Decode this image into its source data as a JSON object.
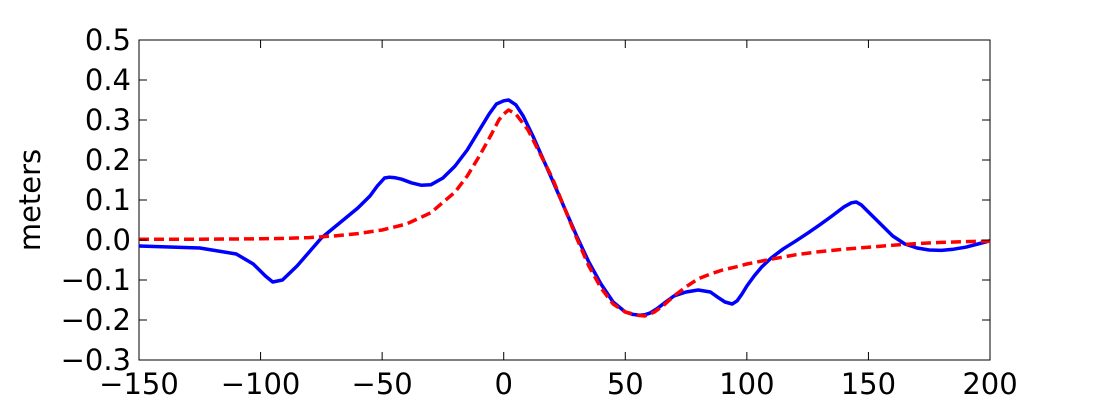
{
  "chart_data": {
    "type": "line",
    "title": "",
    "xlabel": "",
    "ylabel": "meters",
    "xlim": [
      -150,
      200
    ],
    "ylim": [
      -0.3,
      0.5
    ],
    "xticks": [
      -150,
      -100,
      -50,
      0,
      50,
      100,
      150,
      200
    ],
    "xtick_labels": [
      "−150",
      "−100",
      "−50",
      "0",
      "50",
      "100",
      "150",
      "200"
    ],
    "yticks": [
      -0.3,
      -0.2,
      -0.1,
      0.0,
      0.1,
      0.2,
      0.3,
      0.4,
      0.5
    ],
    "ytick_labels": [
      "−0.3",
      "−0.2",
      "−0.1",
      "0.0",
      "0.1",
      "0.2",
      "0.3",
      "0.4",
      "0.5"
    ],
    "grid": false,
    "legend": "none",
    "series": [
      {
        "style": "solid",
        "color": "#0000ff",
        "x": [
          -150,
          -125,
          -110,
          -103,
          -98,
          -95,
          -91,
          -85,
          -80,
          -75,
          -70,
          -65,
          -60,
          -55,
          -52,
          -49,
          -47,
          -45,
          -42,
          -38,
          -34,
          -30,
          -25,
          -20,
          -15,
          -10,
          -6,
          -3,
          0,
          2,
          5,
          8,
          12,
          16,
          20,
          25,
          30,
          35,
          40,
          45,
          50,
          53,
          56,
          58,
          60,
          63,
          66,
          70,
          75,
          80,
          85,
          88,
          91,
          94,
          96,
          98,
          100,
          103,
          106,
          110,
          115,
          120,
          125,
          130,
          135,
          140,
          143,
          145,
          147,
          150,
          155,
          160,
          165,
          170,
          175,
          180,
          185,
          190,
          195,
          200
        ],
        "y": [
          -0.015,
          -0.02,
          -0.035,
          -0.06,
          -0.09,
          -0.105,
          -0.1,
          -0.065,
          -0.03,
          0.005,
          0.03,
          0.055,
          0.08,
          0.11,
          0.135,
          0.155,
          0.157,
          0.156,
          0.152,
          0.143,
          0.137,
          0.138,
          0.155,
          0.185,
          0.225,
          0.275,
          0.315,
          0.34,
          0.348,
          0.35,
          0.338,
          0.31,
          0.26,
          0.205,
          0.15,
          0.08,
          0.01,
          -0.055,
          -0.11,
          -0.155,
          -0.18,
          -0.186,
          -0.188,
          -0.187,
          -0.183,
          -0.172,
          -0.158,
          -0.14,
          -0.13,
          -0.125,
          -0.13,
          -0.143,
          -0.155,
          -0.16,
          -0.152,
          -0.135,
          -0.115,
          -0.09,
          -0.068,
          -0.045,
          -0.022,
          -0.003,
          0.017,
          0.038,
          0.06,
          0.083,
          0.093,
          0.095,
          0.088,
          0.07,
          0.04,
          0.01,
          -0.01,
          -0.02,
          -0.025,
          -0.026,
          -0.023,
          -0.018,
          -0.01,
          -0.002
        ]
      },
      {
        "style": "dashed",
        "color": "#ff0000",
        "x": [
          -150,
          -125,
          -100,
          -90,
          -80,
          -70,
          -60,
          -50,
          -40,
          -30,
          -20,
          -15,
          -10,
          -5,
          -2,
          0,
          2,
          5,
          10,
          15,
          20,
          25,
          30,
          35,
          40,
          45,
          50,
          55,
          58,
          62,
          66,
          70,
          75,
          80,
          85,
          90,
          95,
          100,
          110,
          120,
          130,
          140,
          150,
          160,
          170,
          180,
          190,
          200
        ],
        "y": [
          0.002,
          0.002,
          0.003,
          0.004,
          0.006,
          0.01,
          0.016,
          0.025,
          0.04,
          0.068,
          0.12,
          0.16,
          0.21,
          0.265,
          0.3,
          0.315,
          0.325,
          0.315,
          0.275,
          0.215,
          0.155,
          0.08,
          0.005,
          -0.065,
          -0.12,
          -0.16,
          -0.18,
          -0.188,
          -0.19,
          -0.18,
          -0.162,
          -0.14,
          -0.117,
          -0.097,
          -0.085,
          -0.075,
          -0.068,
          -0.06,
          -0.048,
          -0.037,
          -0.029,
          -0.023,
          -0.018,
          -0.013,
          -0.009,
          -0.006,
          -0.004,
          -0.003
        ]
      }
    ]
  }
}
